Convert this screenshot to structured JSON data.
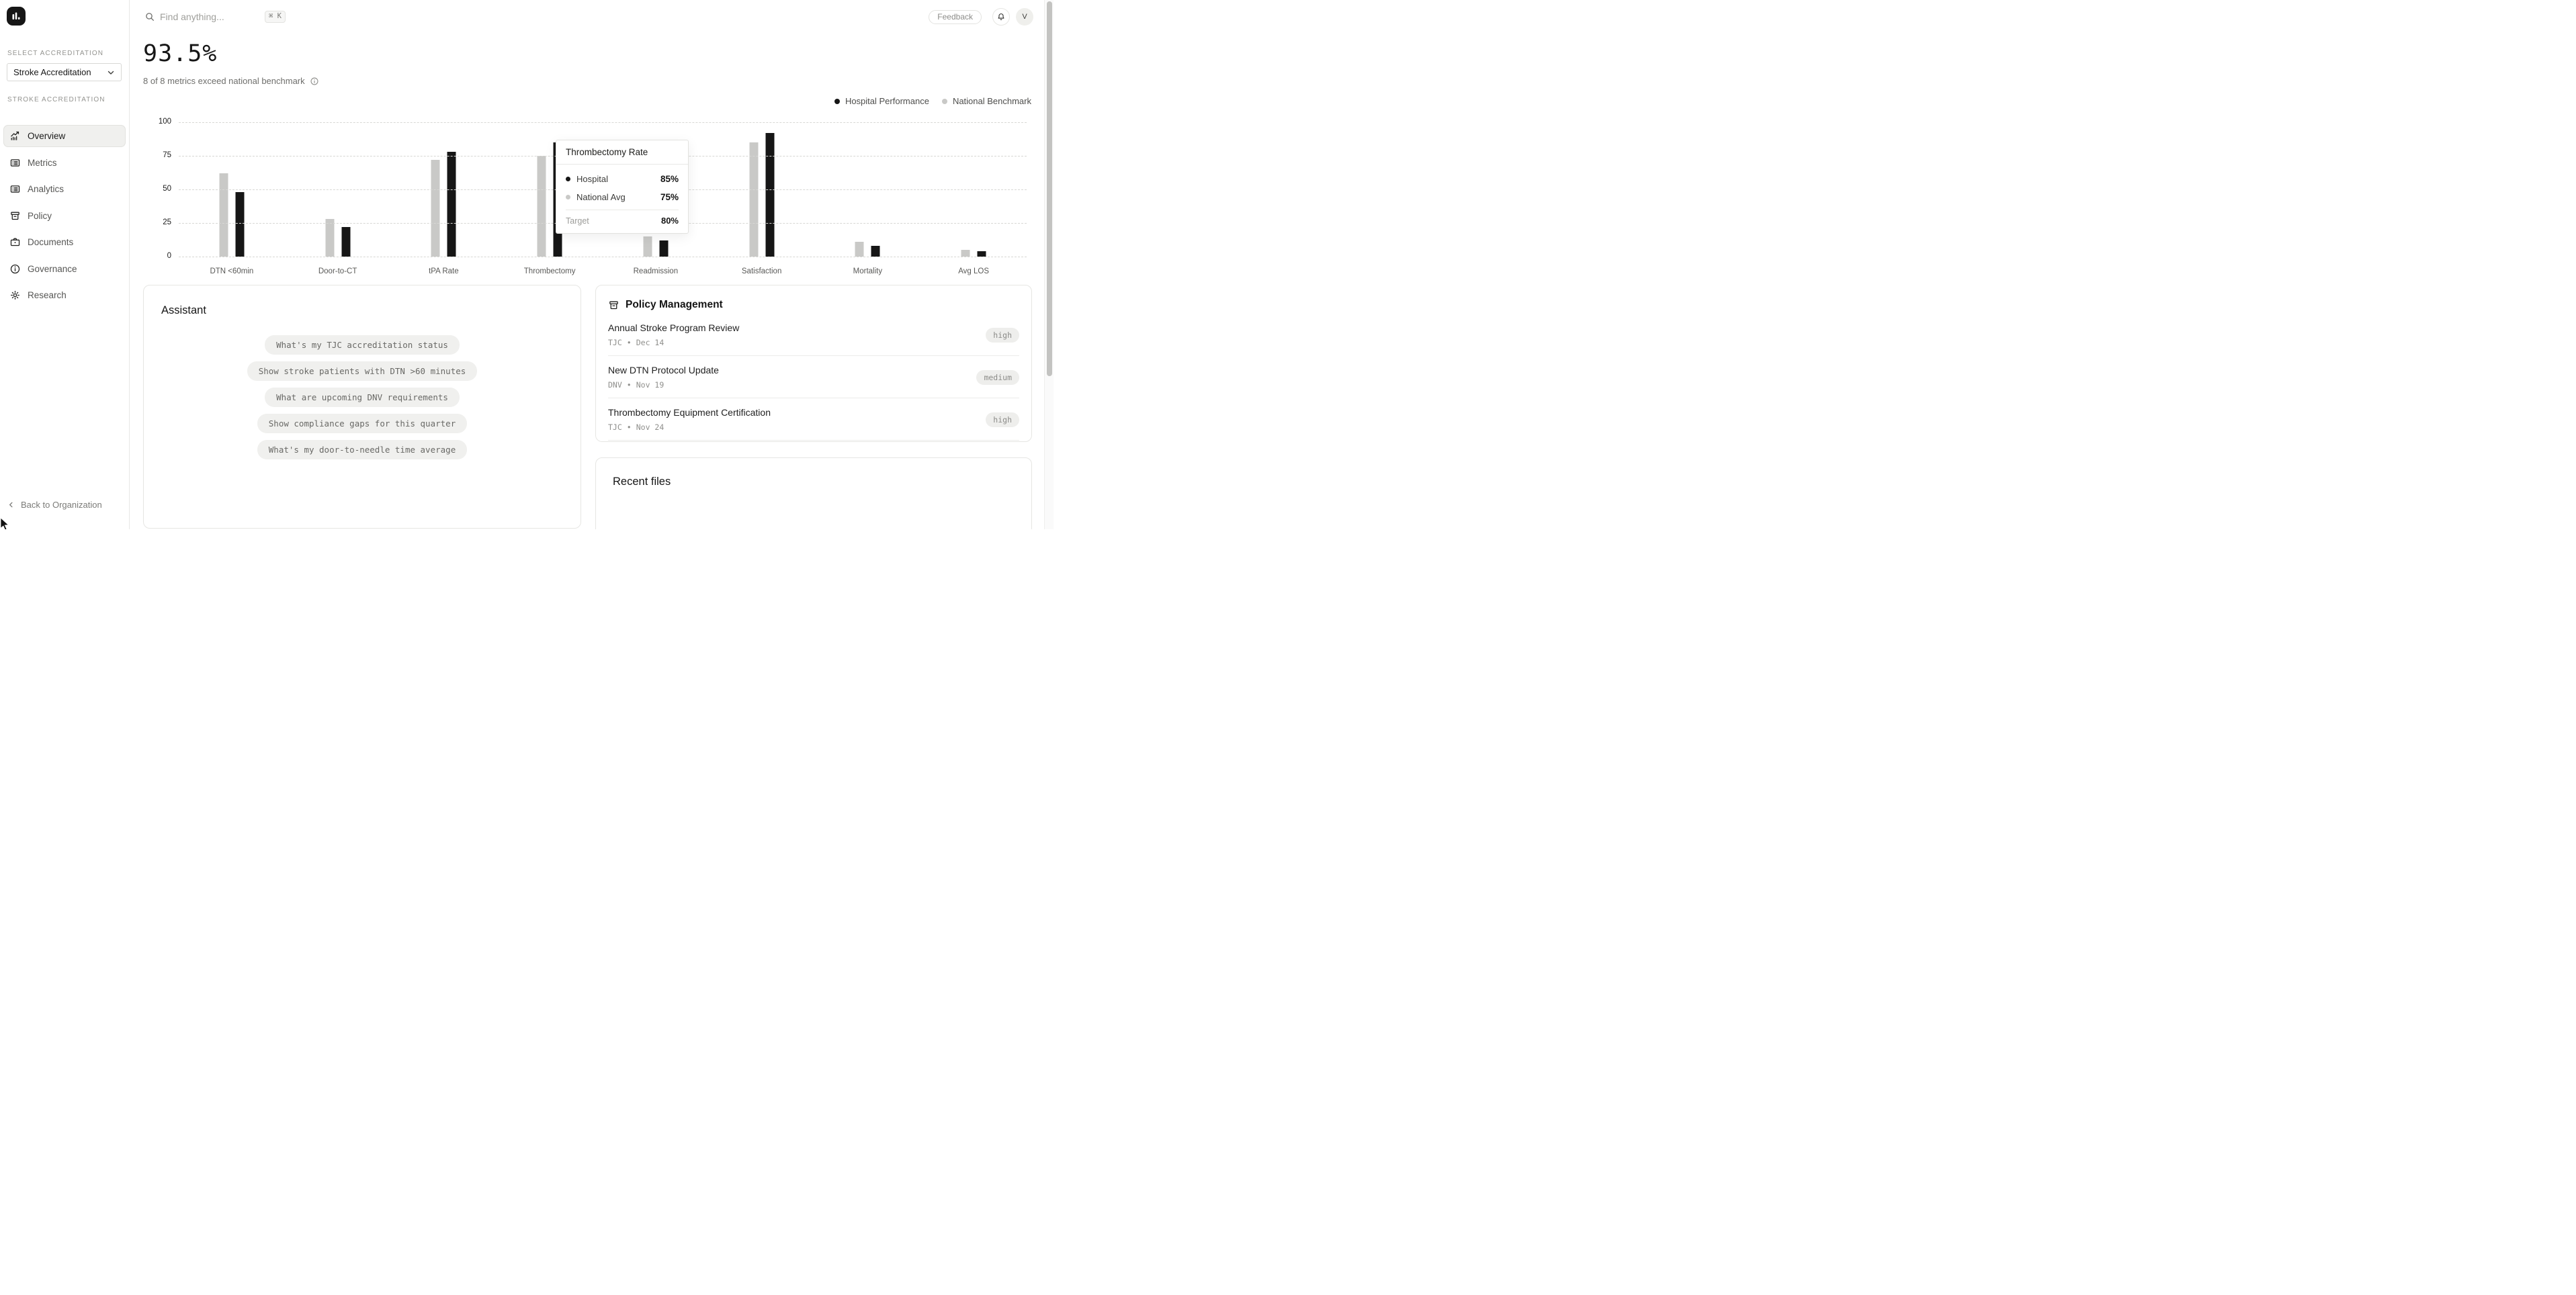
{
  "topbar": {
    "search_placeholder": "Find anything...",
    "search_shortcut": "⌘ K",
    "feedback_label": "Feedback",
    "avatar_initial": "V"
  },
  "sidebar": {
    "select_label": "SELECT ACCREDITATION",
    "accreditation_dropdown": {
      "value": "Stroke Accreditation"
    },
    "section_label": "STROKE ACCREDITATION",
    "nav": [
      {
        "label": "Overview",
        "icon": "chart-trend",
        "active": true
      },
      {
        "label": "Metrics",
        "icon": "list",
        "active": false
      },
      {
        "label": "Analytics",
        "icon": "list",
        "active": false
      },
      {
        "label": "Policy",
        "icon": "archive",
        "active": false
      },
      {
        "label": "Documents",
        "icon": "briefcase",
        "active": false
      },
      {
        "label": "Governance",
        "icon": "info",
        "active": false
      },
      {
        "label": "Research",
        "icon": "gear",
        "active": false
      }
    ],
    "back_link": "Back to Organization"
  },
  "summary": {
    "value": "93.5%",
    "subtitle": "8 of 8 metrics exceed national benchmark"
  },
  "legend": [
    {
      "label": "Hospital Performance",
      "color": "#161616"
    },
    {
      "label": "National Benchmark",
      "color": "#c9c9c7"
    }
  ],
  "chart_data": {
    "type": "bar",
    "categories": [
      "DTN <60min",
      "Door-to-CT",
      "tPA Rate",
      "Thrombectomy",
      "Readmission",
      "Satisfaction",
      "Mortality",
      "Avg LOS"
    ],
    "series": [
      {
        "name": "National Benchmark",
        "color": "#c9c9c7",
        "values": [
          62,
          28,
          72,
          75,
          15,
          85,
          11,
          5
        ]
      },
      {
        "name": "Hospital Performance",
        "color": "#161616",
        "values": [
          48,
          22,
          78,
          85,
          12,
          92,
          8,
          4
        ]
      }
    ],
    "title": "",
    "xlabel": "",
    "ylabel": "",
    "ylim": [
      0,
      100
    ],
    "yticks": [
      0,
      25,
      50,
      75,
      100
    ],
    "grid": "horizontal-dashed",
    "legend_position": "top-right"
  },
  "tooltip": {
    "title": "Thrombectomy Rate",
    "rows": [
      {
        "label": "Hospital",
        "value": "85%",
        "dot": "#161616"
      },
      {
        "label": "National Avg",
        "value": "75%",
        "dot": "#c9c9c7"
      }
    ],
    "footer": {
      "label": "Target",
      "value": "80%"
    }
  },
  "assistant": {
    "title": "Assistant",
    "chips": [
      "What's my TJC accreditation status",
      "Show stroke patients with DTN >60 minutes",
      "What are upcoming DNV requirements",
      "Show compliance gaps for this quarter",
      "What's my door-to-needle time average"
    ]
  },
  "policy": {
    "title": "Policy Management",
    "items": [
      {
        "title": "Annual Stroke Program Review",
        "source": "TJC",
        "date": "Dec 14",
        "priority": "high"
      },
      {
        "title": "New DTN Protocol Update",
        "source": "DNV",
        "date": "Nov 19",
        "priority": "medium"
      },
      {
        "title": "Thrombectomy Equipment Certification",
        "source": "TJC",
        "date": "Nov 24",
        "priority": "high"
      }
    ]
  },
  "recent_files": {
    "title": "Recent files"
  }
}
